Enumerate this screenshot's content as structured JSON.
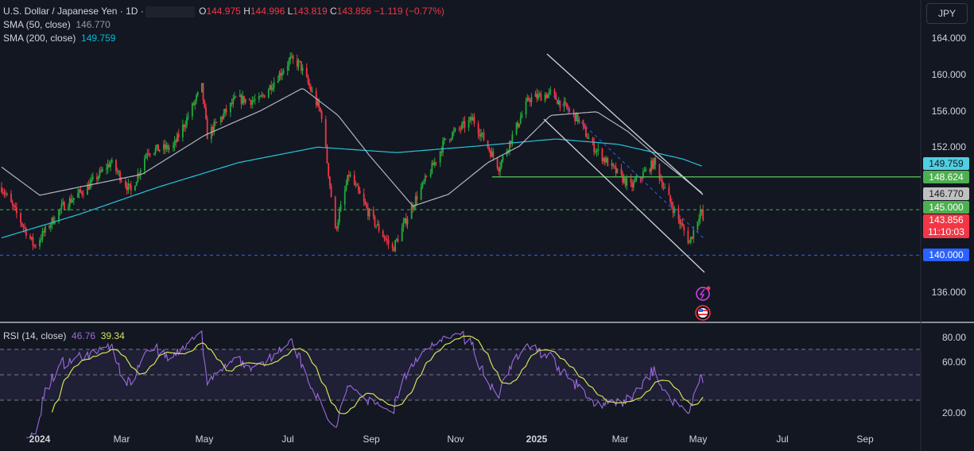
{
  "header": {
    "symbol": "U.S. Dollar / Japanese Yen · 1D ·",
    "open_label": "O",
    "open": "144.975",
    "high_label": "H",
    "high": "144.996",
    "low_label": "L",
    "low": "143.819",
    "close_label": "C",
    "close": "143.856",
    "change": "−1.119 (−0.77%)"
  },
  "indicators": {
    "sma50_label": "SMA (50, close)",
    "sma50_value": "146.770",
    "sma200_label": "SMA (200, close)",
    "sma200_value": "149.759",
    "rsi_label": "RSI (14, close)",
    "rsi_value": "46.76",
    "rsi_ma_value": "39.34"
  },
  "currency_button": "JPY",
  "price_axis": [
    "164.000",
    "160.000",
    "156.000",
    "152.000",
    "136.000"
  ],
  "rsi_axis": [
    "80.00",
    "60.00",
    "20.00"
  ],
  "price_tags": {
    "sma200": "149.759",
    "hline": "148.624",
    "sma50": "146.770",
    "level145": "145.000",
    "last": "143.856",
    "countdown": "11:10:03",
    "level140": "140.000"
  },
  "time_axis": [
    {
      "label": "2024",
      "year": true
    },
    {
      "label": "Mar"
    },
    {
      "label": "May"
    },
    {
      "label": "Jul"
    },
    {
      "label": "Sep"
    },
    {
      "label": "Nov"
    },
    {
      "label": "2025",
      "year": true
    },
    {
      "label": "Mar"
    },
    {
      "label": "May"
    },
    {
      "label": "Jul"
    },
    {
      "label": "Sep"
    }
  ],
  "colors": {
    "up": "#089981",
    "up_body": "#22ab3a",
    "down": "#f23645",
    "sma50": "#b2b5be",
    "sma200": "#26c6da",
    "rsi": "#9c6ade",
    "rsi_ma": "#d4e157",
    "hline": "#4caf50",
    "level140": "#2962ff"
  },
  "chart_data": {
    "type": "candlestick",
    "title": "U.S. Dollar / Japanese Yen · 1D",
    "ylim": [
      134,
      166
    ],
    "price_path": [
      [
        "2023-12-04",
        147.5
      ],
      [
        "2023-12-28",
        141
      ],
      [
        "2024-01-18",
        145.4
      ],
      [
        "2024-02-05",
        147.5
      ],
      [
        "2024-02-22",
        150.2
      ],
      [
        "2024-03-08",
        147
      ],
      [
        "2024-03-20",
        151.5
      ],
      [
        "2024-04-08",
        151.9
      ],
      [
        "2024-04-29",
        158.5
      ],
      [
        "2024-05-03",
        153.2
      ],
      [
        "2024-05-24",
        157.2
      ],
      [
        "2024-06-10",
        157
      ],
      [
        "2024-07-03",
        161.5
      ],
      [
        "2024-07-10",
        161
      ],
      [
        "2024-07-26",
        155.4
      ],
      [
        "2024-08-05",
        142.7
      ],
      [
        "2024-08-15",
        148.9
      ],
      [
        "2024-08-30",
        144.5
      ],
      [
        "2024-09-16",
        140.6
      ],
      [
        "2024-10-03",
        146.2
      ],
      [
        "2024-10-17",
        150.2
      ],
      [
        "2024-10-25",
        152.8
      ],
      [
        "2024-11-14",
        155
      ],
      [
        "2024-12-03",
        149.7
      ],
      [
        "2024-12-25",
        157.2
      ],
      [
        "2025-01-10",
        157.8
      ],
      [
        "2025-01-30",
        155
      ],
      [
        "2025-02-10",
        152
      ],
      [
        "2025-02-25",
        149.5
      ],
      [
        "2025-03-10",
        147.5
      ],
      [
        "2025-03-27",
        150.2
      ],
      [
        "2025-04-08",
        145.8
      ],
      [
        "2025-04-22",
        141.4
      ],
      [
        "2025-04-30",
        144.9
      ],
      [
        "2025-05-02",
        143.86
      ]
    ],
    "sma200_path": [
      [
        "2023-12-04",
        141.9
      ],
      [
        "2024-01-30",
        144.5
      ],
      [
        "2024-03-28",
        147.5
      ],
      [
        "2024-05-26",
        150.2
      ],
      [
        "2024-07-23",
        151.9
      ],
      [
        "2024-09-19",
        151.3
      ],
      [
        "2024-11-16",
        152
      ],
      [
        "2025-01-14",
        152.8
      ],
      [
        "2025-03-01",
        152.2
      ],
      [
        "2025-04-17",
        150.6
      ],
      [
        "2025-05-02",
        149.76
      ]
    ],
    "sma50_path": [
      [
        "2023-12-04",
        149.7
      ],
      [
        "2024-01-01",
        146.6
      ],
      [
        "2024-01-30",
        147.5
      ],
      [
        "2024-03-16",
        148.9
      ],
      [
        "2024-05-01",
        153.2
      ],
      [
        "2024-06-11",
        155.9
      ],
      [
        "2024-07-12",
        158.4
      ],
      [
        "2024-08-07",
        155.4
      ],
      [
        "2024-08-30",
        151
      ],
      [
        "2024-10-01",
        145.4
      ],
      [
        "2024-10-27",
        146.7
      ],
      [
        "2024-11-25",
        150.2
      ],
      [
        "2024-12-18",
        152
      ],
      [
        "2025-01-10",
        155.4
      ],
      [
        "2025-02-13",
        155.8
      ],
      [
        "2025-03-08",
        153.6
      ],
      [
        "2025-03-31",
        150.6
      ],
      [
        "2025-05-02",
        146.77
      ]
    ],
    "horizontal_lines": [
      {
        "price": 148.624,
        "style": "solid",
        "from": "2024-11-28"
      },
      {
        "price": 145,
        "style": "dashed"
      },
      {
        "price": 140,
        "style": "dashed"
      }
    ],
    "rsi_ylim": [
      0,
      100
    ],
    "rsi_bands": [
      30,
      50,
      70
    ]
  }
}
